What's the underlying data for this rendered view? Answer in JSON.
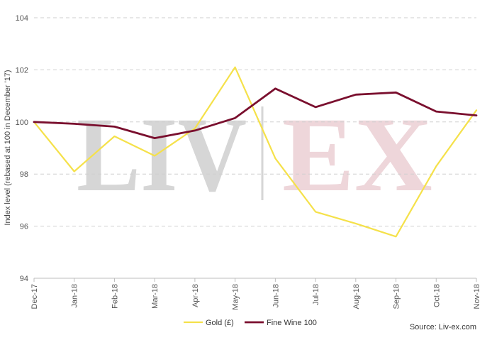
{
  "chart_data": {
    "type": "line",
    "title": "",
    "xlabel": "",
    "ylabel": "Index level (rebased at 100 in December '17)",
    "ylim": [
      94,
      104
    ],
    "yticks": [
      94,
      96,
      98,
      100,
      102,
      104
    ],
    "grid": true,
    "legend_position": "bottom",
    "categories": [
      "Dec-17",
      "Jan-18",
      "Feb-18",
      "Mar-18",
      "Apr-18",
      "May-18",
      "Jun-18",
      "Jul-18",
      "Aug-18",
      "Sep-18",
      "Oct-18",
      "Nov-18"
    ],
    "series": [
      {
        "name": "Gold (£)",
        "color": "#f5e14a",
        "values": [
          100.0,
          98.1,
          99.45,
          98.7,
          99.75,
          102.1,
          98.6,
          96.55,
          96.1,
          95.6,
          98.3,
          100.45
        ]
      },
      {
        "name": "Fine Wine 100",
        "color": "#7a0f2e",
        "values": [
          100.0,
          99.93,
          99.82,
          99.38,
          99.67,
          100.15,
          101.28,
          100.57,
          101.05,
          101.13,
          100.4,
          100.25
        ]
      }
    ],
    "source": "Source: Liv-ex.com",
    "watermark": {
      "left": "LIV",
      "right": "EX",
      "left_color": "#d6d6d6",
      "right_color": "#eed6da"
    }
  }
}
